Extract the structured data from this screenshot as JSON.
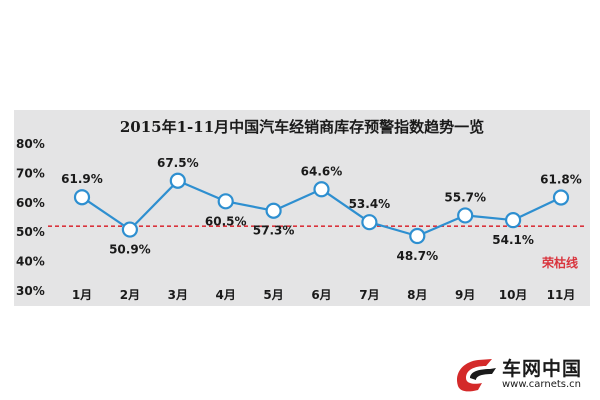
{
  "chart_data": {
    "type": "line",
    "title": "2015年1-11月中国汽车经销商库存预警指数趋势一览",
    "categories": [
      "1月",
      "2月",
      "3月",
      "4月",
      "5月",
      "6月",
      "7月",
      "8月",
      "9月",
      "10月",
      "11月"
    ],
    "values": [
      61.9,
      50.9,
      67.5,
      60.5,
      57.3,
      64.6,
      53.4,
      48.7,
      55.7,
      54.1,
      61.8
    ],
    "data_labels": [
      "61.9%",
      "50.9%",
      "67.5%",
      "60.5%",
      "57.3%",
      "64.6%",
      "53.4%",
      "48.7%",
      "55.7%",
      "54.1%",
      "61.8%"
    ],
    "y_ticks": [
      80,
      70,
      60,
      50,
      40,
      30
    ],
    "y_tick_labels": [
      "80%",
      "70%",
      "60%",
      "50%",
      "40%",
      "30%"
    ],
    "ylim": [
      30,
      80
    ],
    "reference_line": {
      "value": 50,
      "label": "荣枯线",
      "color": "#d9343d"
    },
    "line_color": "#2e8fd0",
    "marker_fill": "#ffffff",
    "panel_color": "#e4e4e5",
    "grid": false,
    "xlabel": "",
    "ylabel": ""
  },
  "watermark": {
    "name": "车网中国",
    "url": "www.carnets.cn",
    "accent_color": "#d42a2a"
  }
}
